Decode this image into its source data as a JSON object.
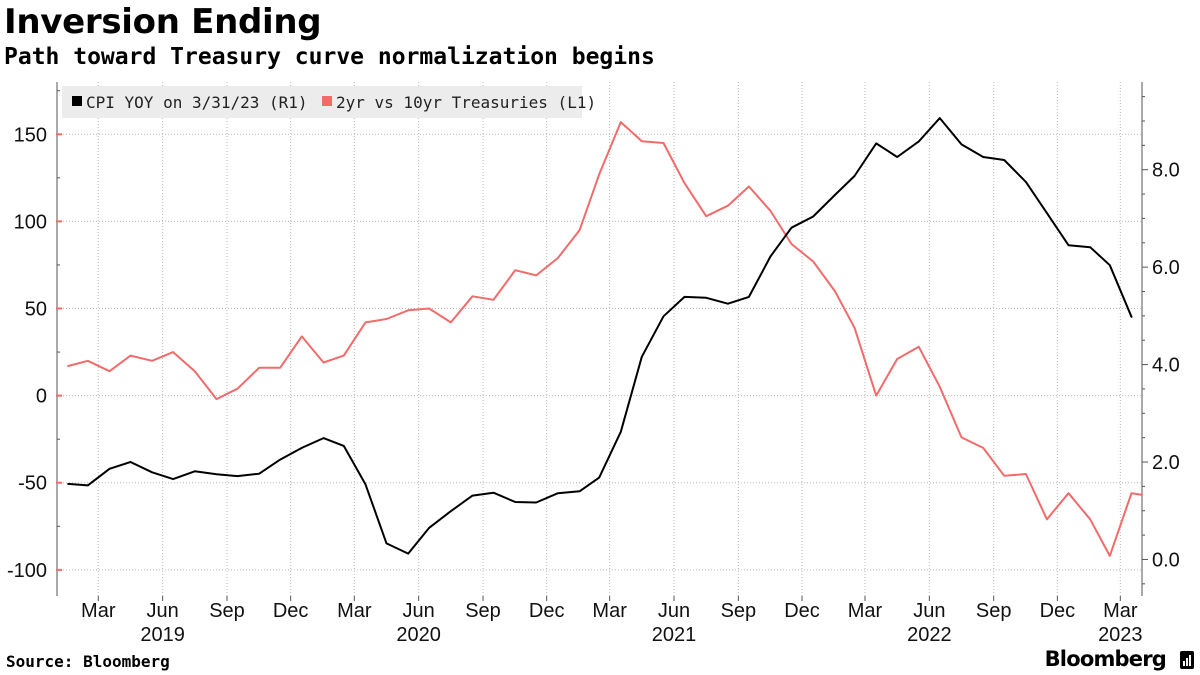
{
  "header": {
    "title": "Inversion Ending",
    "subtitle": "Path toward Treasury curve normalization begins"
  },
  "footer": {
    "source": "Source: Bloomberg",
    "brand": "Bloomberg"
  },
  "chart_data": {
    "type": "line",
    "grid": true,
    "legend_position": "top-left",
    "x_axis": {
      "month_ticks": [
        {
          "label": "Mar",
          "date": "2019-03"
        },
        {
          "label": "Jun",
          "date": "2019-06"
        },
        {
          "label": "Sep",
          "date": "2019-09"
        },
        {
          "label": "Dec",
          "date": "2019-12"
        },
        {
          "label": "Mar",
          "date": "2020-03"
        },
        {
          "label": "Jun",
          "date": "2020-06"
        },
        {
          "label": "Sep",
          "date": "2020-09"
        },
        {
          "label": "Dec",
          "date": "2020-12"
        },
        {
          "label": "Mar",
          "date": "2021-03"
        },
        {
          "label": "Jun",
          "date": "2021-06"
        },
        {
          "label": "Sep",
          "date": "2021-09"
        },
        {
          "label": "Dec",
          "date": "2021-12"
        },
        {
          "label": "Mar",
          "date": "2022-03"
        },
        {
          "label": "Jun",
          "date": "2022-06"
        },
        {
          "label": "Sep",
          "date": "2022-09"
        },
        {
          "label": "Dec",
          "date": "2022-12"
        },
        {
          "label": "Mar",
          "date": "2023-03"
        }
      ],
      "year_ticks": [
        {
          "label": "2019",
          "date": "2019-06"
        },
        {
          "label": "2020",
          "date": "2020-06"
        },
        {
          "label": "2021",
          "date": "2021-06"
        },
        {
          "label": "2022",
          "date": "2022-06"
        },
        {
          "label": "2023",
          "date": "2023-03"
        }
      ],
      "range": [
        "2019-01-15",
        "2023-04-15"
      ]
    },
    "y_left": {
      "ticks": [
        150,
        100,
        50,
        0,
        -50,
        -100
      ],
      "tick_labels": [
        "150",
        "100",
        "50",
        "0",
        "-50",
        "-100"
      ],
      "range": [
        -115,
        180
      ]
    },
    "y_right": {
      "ticks": [
        0,
        2,
        4,
        6,
        8
      ],
      "tick_labels": [
        "0.0",
        "2.0",
        "4.0",
        "6.0",
        "8.0"
      ],
      "range": [
        -0.75,
        9.8
      ]
    },
    "series": [
      {
        "name": "2yr vs 10yr Treasuries",
        "legend_label": "2yr vs 10yr Treasuries  (L1)",
        "axis": "left",
        "color": "#f26b6b",
        "points": [
          [
            "2019-01-31",
            17
          ],
          [
            "2019-02-28",
            20
          ],
          [
            "2019-03-31",
            14
          ],
          [
            "2019-04-30",
            23
          ],
          [
            "2019-05-31",
            20
          ],
          [
            "2019-06-30",
            25
          ],
          [
            "2019-07-31",
            14
          ],
          [
            "2019-08-31",
            -2
          ],
          [
            "2019-09-30",
            4
          ],
          [
            "2019-10-31",
            16
          ],
          [
            "2019-11-30",
            16
          ],
          [
            "2019-12-31",
            34
          ],
          [
            "2020-01-31",
            19
          ],
          [
            "2020-02-29",
            23
          ],
          [
            "2020-03-31",
            42
          ],
          [
            "2020-04-30",
            44
          ],
          [
            "2020-05-31",
            49
          ],
          [
            "2020-06-30",
            50
          ],
          [
            "2020-07-31",
            42
          ],
          [
            "2020-08-31",
            57
          ],
          [
            "2020-09-30",
            55
          ],
          [
            "2020-10-31",
            72
          ],
          [
            "2020-11-30",
            69
          ],
          [
            "2020-12-31",
            79
          ],
          [
            "2021-01-31",
            95
          ],
          [
            "2021-02-28",
            127
          ],
          [
            "2021-03-31",
            157
          ],
          [
            "2021-04-30",
            146
          ],
          [
            "2021-05-31",
            145
          ],
          [
            "2021-06-30",
            122
          ],
          [
            "2021-07-31",
            103
          ],
          [
            "2021-08-31",
            109
          ],
          [
            "2021-09-30",
            120
          ],
          [
            "2021-10-31",
            106
          ],
          [
            "2021-11-30",
            87
          ],
          [
            "2021-12-31",
            77
          ],
          [
            "2022-01-31",
            60
          ],
          [
            "2022-02-28",
            39
          ],
          [
            "2022-03-31",
            0
          ],
          [
            "2022-04-30",
            21
          ],
          [
            "2022-05-31",
            28
          ],
          [
            "2022-06-30",
            5
          ],
          [
            "2022-07-31",
            -24
          ],
          [
            "2022-08-31",
            -30
          ],
          [
            "2022-09-30",
            -46
          ],
          [
            "2022-10-31",
            -45
          ],
          [
            "2022-11-30",
            -71
          ],
          [
            "2022-12-31",
            -56
          ],
          [
            "2023-01-31",
            -71
          ],
          [
            "2023-02-28",
            -92
          ],
          [
            "2023-03-31",
            -56
          ],
          [
            "2023-04-15",
            -57
          ]
        ]
      },
      {
        "name": "CPI YOY on 3/31/23",
        "legend_label": "CPI YOY  on 3/31/23 (R1)",
        "axis": "right",
        "color": "#000000",
        "points": [
          [
            "2019-01-31",
            1.55
          ],
          [
            "2019-02-28",
            1.52
          ],
          [
            "2019-03-31",
            1.86
          ],
          [
            "2019-04-30",
            2.0
          ],
          [
            "2019-05-31",
            1.79
          ],
          [
            "2019-06-30",
            1.65
          ],
          [
            "2019-07-31",
            1.81
          ],
          [
            "2019-08-31",
            1.75
          ],
          [
            "2019-09-30",
            1.71
          ],
          [
            "2019-10-31",
            1.76
          ],
          [
            "2019-11-30",
            2.05
          ],
          [
            "2019-12-31",
            2.29
          ],
          [
            "2020-01-31",
            2.49
          ],
          [
            "2020-02-29",
            2.33
          ],
          [
            "2020-03-31",
            1.54
          ],
          [
            "2020-04-30",
            0.33
          ],
          [
            "2020-05-31",
            0.12
          ],
          [
            "2020-06-30",
            0.65
          ],
          [
            "2020-07-31",
            0.99
          ],
          [
            "2020-08-31",
            1.31
          ],
          [
            "2020-09-30",
            1.37
          ],
          [
            "2020-10-31",
            1.18
          ],
          [
            "2020-11-30",
            1.17
          ],
          [
            "2020-12-31",
            1.36
          ],
          [
            "2021-01-31",
            1.4
          ],
          [
            "2021-02-28",
            1.68
          ],
          [
            "2021-03-31",
            2.62
          ],
          [
            "2021-04-30",
            4.16
          ],
          [
            "2021-05-31",
            4.99
          ],
          [
            "2021-06-30",
            5.39
          ],
          [
            "2021-07-31",
            5.37
          ],
          [
            "2021-08-31",
            5.25
          ],
          [
            "2021-09-30",
            5.39
          ],
          [
            "2021-10-31",
            6.22
          ],
          [
            "2021-11-30",
            6.81
          ],
          [
            "2021-12-31",
            7.04
          ],
          [
            "2022-01-31",
            7.48
          ],
          [
            "2022-02-28",
            7.87
          ],
          [
            "2022-03-31",
            8.54
          ],
          [
            "2022-04-30",
            8.26
          ],
          [
            "2022-05-31",
            8.58
          ],
          [
            "2022-06-30",
            9.06
          ],
          [
            "2022-07-31",
            8.52
          ],
          [
            "2022-08-31",
            8.26
          ],
          [
            "2022-09-30",
            8.2
          ],
          [
            "2022-10-31",
            7.75
          ],
          [
            "2022-11-30",
            7.11
          ],
          [
            "2022-12-31",
            6.45
          ],
          [
            "2023-01-31",
            6.41
          ],
          [
            "2023-02-28",
            6.04
          ],
          [
            "2023-03-31",
            4.98
          ]
        ]
      }
    ]
  }
}
